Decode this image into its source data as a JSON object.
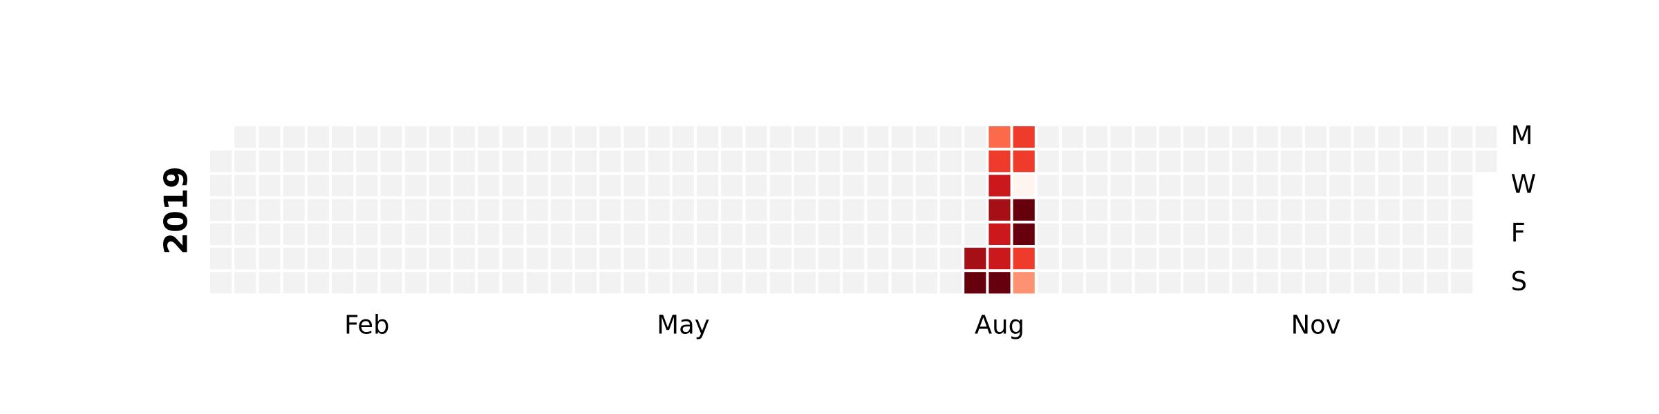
{
  "chart_data": {
    "type": "heatmap",
    "title": "",
    "year_label": "2019",
    "start_date": "2019-01-01",
    "end_date": "2019-12-31",
    "month_labels": [
      {
        "label": "Feb",
        "month": 2
      },
      {
        "label": "May",
        "month": 5
      },
      {
        "label": "Aug",
        "month": 8
      },
      {
        "label": "Nov",
        "month": 11
      }
    ],
    "day_labels": [
      {
        "label": "M",
        "weekday": 0
      },
      {
        "label": "W",
        "weekday": 2
      },
      {
        "label": "F",
        "weekday": 4
      },
      {
        "label": "S",
        "weekday": 6
      }
    ],
    "colors": {
      "empty": "#f2f2f2",
      "border": "#ffffff",
      "scale": [
        "#fff5f0",
        "#fcbba1",
        "#fc9272",
        "#fb6a4a",
        "#ef3b2c",
        "#cb181d",
        "#a50f15",
        "#67000d"
      ]
    },
    "value_range": [
      0,
      1
    ],
    "values": [
      {
        "date": "2019-08-10",
        "value": 0.86
      },
      {
        "date": "2019-08-11",
        "value": 1.0
      },
      {
        "date": "2019-08-12",
        "value": 0.42
      },
      {
        "date": "2019-08-13",
        "value": 0.62
      },
      {
        "date": "2019-08-14",
        "value": 0.7
      },
      {
        "date": "2019-08-15",
        "value": 0.92
      },
      {
        "date": "2019-08-16",
        "value": 0.66
      },
      {
        "date": "2019-08-17",
        "value": 0.74
      },
      {
        "date": "2019-08-18",
        "value": 0.98
      },
      {
        "date": "2019-08-19",
        "value": 0.5
      },
      {
        "date": "2019-08-20",
        "value": 0.64
      },
      {
        "date": "2019-08-21",
        "value": 0.02
      },
      {
        "date": "2019-08-22",
        "value": 0.96
      },
      {
        "date": "2019-08-23",
        "value": 0.96
      },
      {
        "date": "2019-08-24",
        "value": 0.52
      },
      {
        "date": "2019-08-25",
        "value": 0.28
      }
    ]
  }
}
